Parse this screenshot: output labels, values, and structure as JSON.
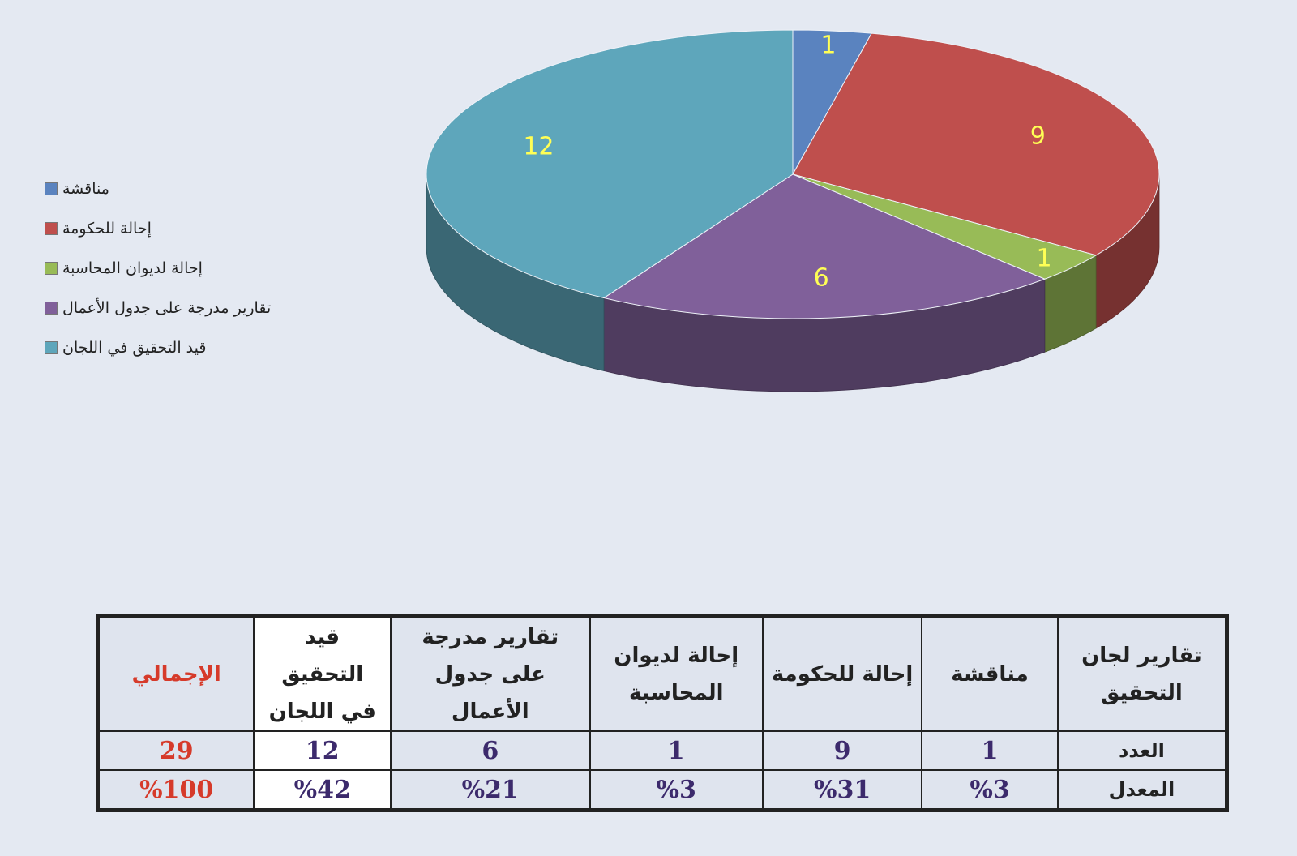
{
  "chart_data": {
    "type": "pie3d",
    "categories": [
      "مناقشة",
      "إحالة للحكومة",
      "إحالة لديوان المحاسبة",
      "تقارير مدرجة على جدول الأعمال",
      "قيد التحقيق في اللجان"
    ],
    "values": [
      1,
      9,
      1,
      6,
      12
    ],
    "colors": [
      "#5a83bf",
      "#bf4f4d",
      "#98bb57",
      "#80609a",
      "#5ea6bb"
    ],
    "label_color": "#ffff55",
    "legend": "left"
  },
  "table": {
    "header": [
      "تقارير لجان التحقيق",
      "مناقشة",
      "إحالة للحكومة",
      "إحالة لديوان المحاسبة",
      "تقارير مدرجة على جدول الأعمال",
      "قيد التحقيق في اللجان",
      "الإجمالي"
    ],
    "rows": [
      [
        "العدد",
        "1",
        "9",
        "1",
        "6",
        "12",
        "29"
      ],
      [
        "المعدل",
        "%3",
        "%31",
        "%3",
        "%21",
        "%42",
        "%100"
      ]
    ]
  }
}
